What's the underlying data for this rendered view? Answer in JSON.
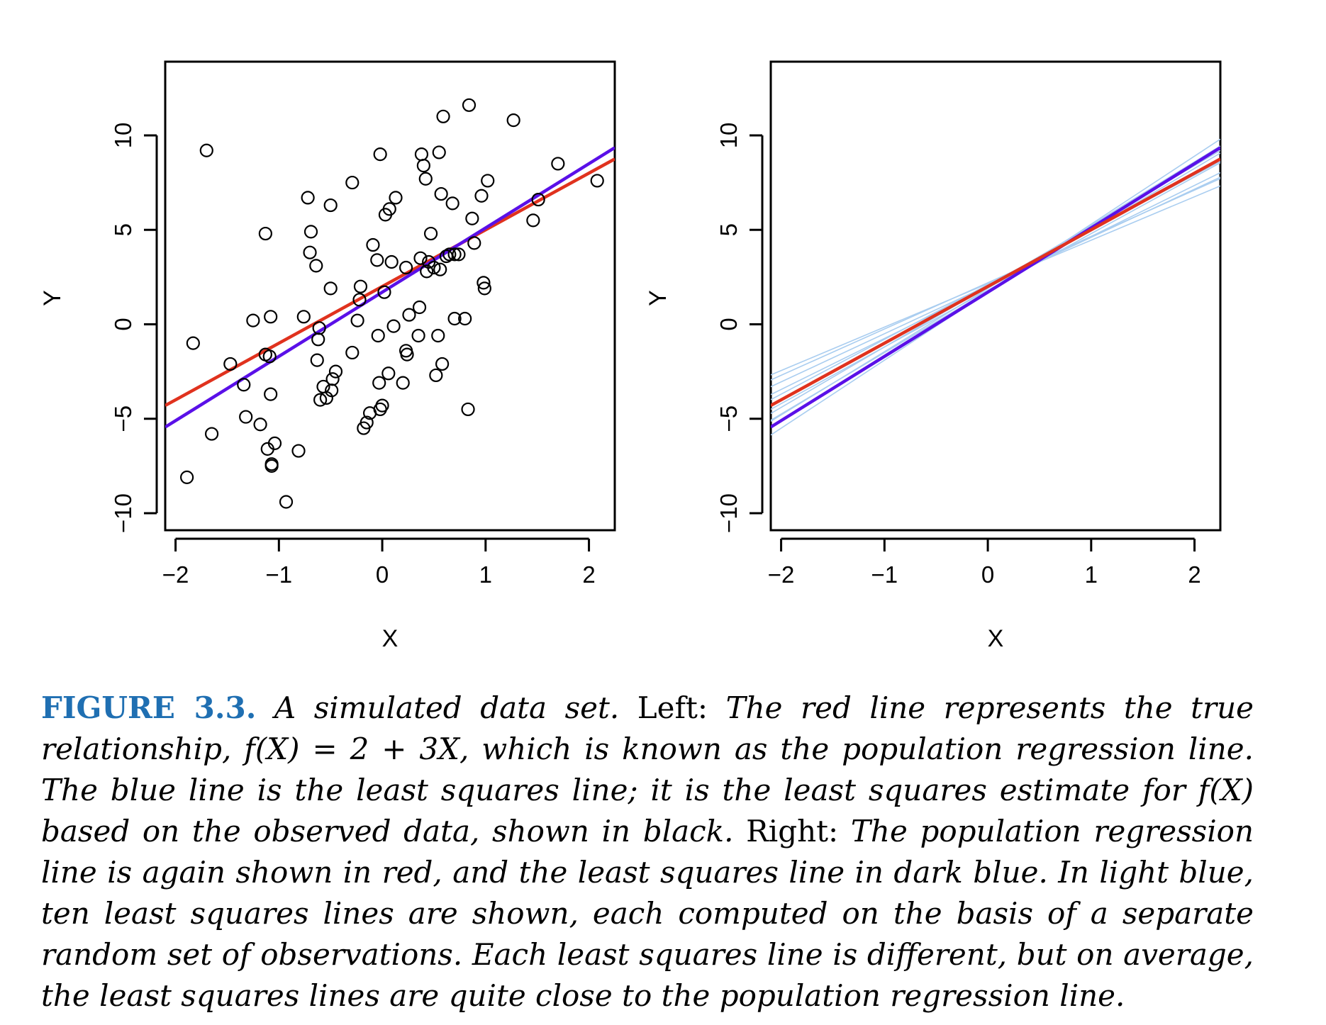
{
  "chart_data": [
    {
      "type": "scatter",
      "panel": "Left",
      "xlabel": "X",
      "ylabel": "Y",
      "xlim": [
        -2.1,
        2.25
      ],
      "ylim": [
        -10.9,
        13.9
      ],
      "xticks": [
        -2,
        -1,
        0,
        1,
        2
      ],
      "yticks": [
        -10,
        -5,
        0,
        5,
        10
      ],
      "grid": false,
      "points": [
        [
          -1.89,
          -8.1
        ],
        [
          -1.83,
          -1.0
        ],
        [
          -1.7,
          9.2
        ],
        [
          -1.65,
          -5.8
        ],
        [
          -1.47,
          -2.1
        ],
        [
          -1.34,
          -3.2
        ],
        [
          -1.32,
          -4.9
        ],
        [
          -1.25,
          0.2
        ],
        [
          -1.18,
          -5.3
        ],
        [
          -1.13,
          4.8
        ],
        [
          -1.13,
          -1.6
        ],
        [
          -1.11,
          -6.6
        ],
        [
          -1.09,
          -1.7
        ],
        [
          -1.08,
          0.4
        ],
        [
          -1.08,
          -3.7
        ],
        [
          -1.07,
          -7.4
        ],
        [
          -1.07,
          -7.5
        ],
        [
          -1.04,
          -6.3
        ],
        [
          -0.93,
          -9.4
        ],
        [
          -0.81,
          -6.7
        ],
        [
          -0.76,
          0.4
        ],
        [
          -0.72,
          6.7
        ],
        [
          -0.7,
          3.8
        ],
        [
          -0.69,
          4.9
        ],
        [
          -0.64,
          3.1
        ],
        [
          -0.63,
          -1.9
        ],
        [
          -0.62,
          -0.8
        ],
        [
          -0.61,
          -0.2
        ],
        [
          -0.6,
          -4.0
        ],
        [
          -0.57,
          -3.3
        ],
        [
          -0.54,
          -3.9
        ],
        [
          -0.5,
          6.3
        ],
        [
          -0.5,
          1.9
        ],
        [
          -0.49,
          -3.5
        ],
        [
          -0.48,
          -2.9
        ],
        [
          -0.45,
          -2.5
        ],
        [
          -0.29,
          7.5
        ],
        [
          -0.29,
          -1.5
        ],
        [
          -0.24,
          0.2
        ],
        [
          -0.22,
          1.3
        ],
        [
          -0.21,
          2.0
        ],
        [
          -0.18,
          -5.5
        ],
        [
          -0.15,
          -5.2
        ],
        [
          -0.12,
          -4.7
        ],
        [
          -0.09,
          4.2
        ],
        [
          -0.05,
          3.4
        ],
        [
          -0.04,
          -0.6
        ],
        [
          -0.03,
          -3.1
        ],
        [
          -0.02,
          9.0
        ],
        [
          -0.02,
          -4.5
        ],
        [
          0.0,
          -4.3
        ],
        [
          0.02,
          1.7
        ],
        [
          0.03,
          5.8
        ],
        [
          0.06,
          -2.6
        ],
        [
          0.07,
          6.1
        ],
        [
          0.09,
          3.3
        ],
        [
          0.11,
          -0.1
        ],
        [
          0.13,
          6.7
        ],
        [
          0.2,
          -3.1
        ],
        [
          0.23,
          3.0
        ],
        [
          0.23,
          -1.4
        ],
        [
          0.24,
          -1.6
        ],
        [
          0.26,
          0.5
        ],
        [
          0.35,
          -0.6
        ],
        [
          0.36,
          0.9
        ],
        [
          0.37,
          3.5
        ],
        [
          0.38,
          9.0
        ],
        [
          0.4,
          8.4
        ],
        [
          0.42,
          7.7
        ],
        [
          0.43,
          2.8
        ],
        [
          0.45,
          3.3
        ],
        [
          0.47,
          4.8
        ],
        [
          0.5,
          3.0
        ],
        [
          0.52,
          -2.7
        ],
        [
          0.54,
          -0.6
        ],
        [
          0.55,
          9.1
        ],
        [
          0.56,
          2.9
        ],
        [
          0.57,
          6.9
        ],
        [
          0.58,
          -2.1
        ],
        [
          0.59,
          11.0
        ],
        [
          0.62,
          3.6
        ],
        [
          0.65,
          3.7
        ],
        [
          0.68,
          6.4
        ],
        [
          0.7,
          3.7
        ],
        [
          0.7,
          0.3
        ],
        [
          0.74,
          3.7
        ],
        [
          0.8,
          0.3
        ],
        [
          0.83,
          -4.5
        ],
        [
          0.84,
          11.6
        ],
        [
          0.87,
          5.6
        ],
        [
          0.89,
          4.3
        ],
        [
          0.96,
          6.8
        ],
        [
          0.98,
          2.2
        ],
        [
          0.99,
          1.9
        ],
        [
          1.02,
          7.6
        ],
        [
          1.27,
          10.8
        ],
        [
          1.46,
          5.5
        ],
        [
          1.51,
          6.6
        ],
        [
          1.7,
          8.5
        ],
        [
          2.08,
          7.6
        ]
      ],
      "lines": [
        {
          "color": "#e0321e",
          "intercept": 2.0,
          "slope": 3.0
        },
        {
          "color": "#5a10e8",
          "intercept": 1.7,
          "slope": 3.4
        }
      ]
    },
    {
      "type": "line",
      "panel": "Right",
      "xlabel": "X",
      "ylabel": "Y",
      "xlim": [
        -2.1,
        2.25
      ],
      "ylim": [
        -10.9,
        13.9
      ],
      "xticks": [
        -2,
        -1,
        0,
        1,
        2
      ],
      "yticks": [
        -10,
        -5,
        0,
        5,
        10
      ],
      "grid": false,
      "light_lines": [
        {
          "intercept": 2.2,
          "slope": 2.45
        },
        {
          "intercept": 2.05,
          "slope": 2.55
        },
        {
          "intercept": 2.15,
          "slope": 2.3
        },
        {
          "intercept": 1.95,
          "slope": 2.7
        },
        {
          "intercept": 2.1,
          "slope": 2.9
        },
        {
          "intercept": 1.8,
          "slope": 3.0
        },
        {
          "intercept": 1.75,
          "slope": 3.25
        },
        {
          "intercept": 1.9,
          "slope": 3.35
        },
        {
          "intercept": 1.7,
          "slope": 3.6
        },
        {
          "intercept": 2.0,
          "slope": 3.2
        }
      ],
      "lines": [
        {
          "color": "#5a10e8",
          "intercept": 1.7,
          "slope": 3.4
        },
        {
          "color": "#e0321e",
          "intercept": 2.0,
          "slope": 3.0
        }
      ],
      "light_color": "#a9cdf0"
    }
  ],
  "caption": {
    "label": "FIGURE 3.3.",
    "t1": "A simulated data set.",
    "w_left": "Left:",
    "t2": "The red line represents the true relationship,",
    "formula": "f(X) = 2 + 3X",
    "t3": ", which is known as the population regression line. The blue line is the least squares line; it is the least squares estimate for",
    "fx": "f(X)",
    "t4": "based on the observed data, shown in black.",
    "w_right": "Right:",
    "t5": "The population regression line is again shown in red, and the least squares line in dark blue. In light blue, ten least squares lines are shown, each computed on the basis of a separate random set of observations. Each least squares line is different, but on average, the least squares lines are quite close to the population regression line."
  }
}
